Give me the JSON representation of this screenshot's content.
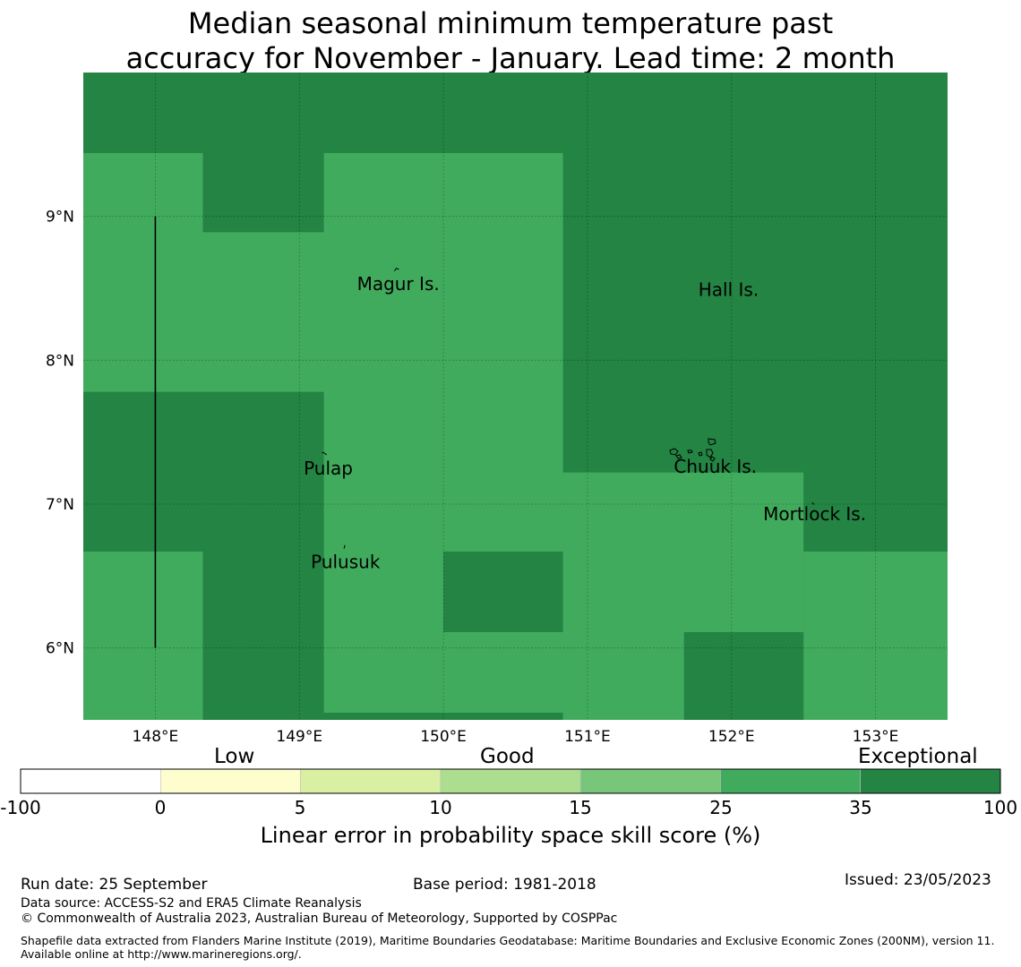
{
  "title": {
    "line1": "Median seasonal minimum temperature past",
    "line2": "accuracy for November - January. Lead time: 2 month"
  },
  "map": {
    "lon_range": [
      147.5,
      153.5
    ],
    "lat_range": [
      5.5,
      10.0
    ],
    "grid_lons": [
      148,
      149,
      150,
      151,
      152,
      153
    ],
    "grid_lats": [
      6,
      7,
      8,
      9
    ],
    "x_tick_labels": [
      "148°E",
      "149°E",
      "150°E",
      "151°E",
      "152°E",
      "153°E"
    ],
    "y_tick_labels": [
      "6°N",
      "7°N",
      "8°N",
      "9°N"
    ],
    "background_category": "exceptional",
    "cells": [
      {
        "lon": [
          147.5,
          153.5
        ],
        "lat": [
          5.5,
          10.0
        ],
        "category": "exceptional"
      },
      {
        "lon": [
          147.5,
          150.83
        ],
        "lat": [
          5.5,
          9.44
        ],
        "category": "good_high"
      },
      {
        "lon": [
          148.33,
          149.17
        ],
        "lat": [
          8.89,
          9.44
        ],
        "category": "exceptional"
      },
      {
        "lon": [
          147.5,
          149.17
        ],
        "lat": [
          6.67,
          7.78
        ],
        "category": "exceptional"
      },
      {
        "lon": [
          148.33,
          149.17
        ],
        "lat": [
          5.5,
          6.67
        ],
        "category": "exceptional"
      },
      {
        "lon": [
          150.0,
          150.83
        ],
        "lat": [
          6.11,
          6.67
        ],
        "category": "exceptional"
      },
      {
        "lon": [
          149.17,
          150.83
        ],
        "lat": [
          5.5,
          5.55
        ],
        "category": "exceptional"
      },
      {
        "lon": [
          150.83,
          152.5
        ],
        "lat": [
          5.5,
          7.22
        ],
        "category": "good_high"
      },
      {
        "lon": [
          152.5,
          153.5
        ],
        "lat": [
          5.5,
          6.67
        ],
        "category": "good_high"
      },
      {
        "lon": [
          151.67,
          152.5
        ],
        "lat": [
          5.5,
          6.11
        ],
        "category": "exceptional"
      }
    ],
    "boundary_line": {
      "lon": 148.0,
      "lat": [
        6.0,
        9.0
      ]
    },
    "places": [
      {
        "name": "Magur Is.",
        "lon": 149.4,
        "lat": 8.53
      },
      {
        "name": "Hall Is.",
        "lon": 151.77,
        "lat": 8.49
      },
      {
        "name": "Pulap",
        "lon": 149.03,
        "lat": 7.25
      },
      {
        "name": "Chuuk Is.",
        "lon": 151.6,
        "lat": 7.26
      },
      {
        "name": "Mortlock Is.",
        "lon": 152.22,
        "lat": 6.93
      },
      {
        "name": "Pulusuk",
        "lon": 149.08,
        "lat": 6.6
      }
    ]
  },
  "colorbar": {
    "bins": [
      {
        "key": "none",
        "color": "#ffffff"
      },
      {
        "key": "low",
        "color": "#fdfdce"
      },
      {
        "key": "fair",
        "color": "#d9f0a3"
      },
      {
        "key": "good_low",
        "color": "#addd8e"
      },
      {
        "key": "good_mid",
        "color": "#78c679"
      },
      {
        "key": "good_high",
        "color": "#41ab5d"
      },
      {
        "key": "exceptional",
        "color": "#238443"
      }
    ],
    "ticks": [
      "-100",
      "0",
      "5",
      "10",
      "15",
      "25",
      "35",
      "100"
    ],
    "categories": {
      "low": "Low",
      "good": "Good",
      "exceptional": "Exceptional"
    },
    "label": "Linear error in probability space skill score (%)"
  },
  "footer": {
    "run_date": "Run date: 25 September",
    "base_period": "Base period: 1981-2018",
    "issued": "Issued: 23/05/2023",
    "data_source": "Data source: ACCESS-S2 and ERA5 Climate Reanalysis",
    "copyright": "© Commonwealth of Australia 2023, Australian Bureau of Meteorology, Supported by COSPPac",
    "shapefile": "Shapefile data extracted from Flanders Marine Institute (2019), Maritime Boundaries Geodatabase: Maritime Boundaries and Exclusive Economic Zones (200NM), version 11. Available online at http://www.marineregions.org/."
  }
}
